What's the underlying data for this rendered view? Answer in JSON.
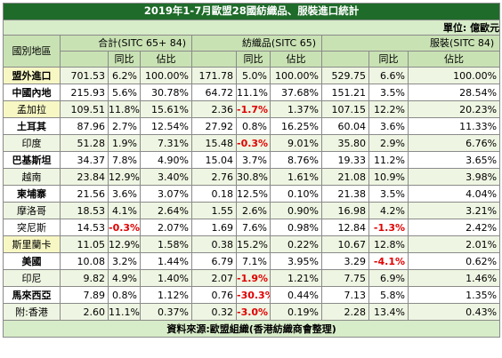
{
  "title": "2019年1-7月歐盟28國紡織品、服裝進口統計",
  "unit": "單位: 億歐元",
  "region_header": "國別地區",
  "groups": {
    "total": "合計(SITC 65+ 84)",
    "textile": "紡織品(SITC 65)",
    "apparel": "服裝(SITC 84)"
  },
  "subheaders": {
    "yoy": "同比",
    "share": "佔比"
  },
  "rows": [
    {
      "region": "盟外進口",
      "t_val": "701.53",
      "t_yoy": "6.2%",
      "t_share": "100.00%",
      "x_val": "171.78",
      "x_yoy": "5.0%",
      "x_share": "100.00%",
      "a_val": "529.75",
      "a_yoy": "6.6%",
      "a_share": "100.00%"
    },
    {
      "region": "中國內地",
      "t_val": "215.93",
      "t_yoy": "5.6%",
      "t_share": "30.78%",
      "x_val": "64.72",
      "x_yoy": "11.1%",
      "x_share": "37.68%",
      "a_val": "151.21",
      "a_yoy": "3.5%",
      "a_share": "28.54%"
    },
    {
      "region": "孟加拉",
      "t_val": "109.51",
      "t_yoy": "11.8%",
      "t_share": "15.61%",
      "x_val": "2.36",
      "x_yoy": "-1.7%",
      "x_share": "1.37%",
      "a_val": "107.15",
      "a_yoy": "12.2%",
      "a_share": "20.23%"
    },
    {
      "region": "土耳其",
      "t_val": "87.96",
      "t_yoy": "2.7%",
      "t_share": "12.54%",
      "x_val": "27.92",
      "x_yoy": "0.8%",
      "x_share": "16.25%",
      "a_val": "60.04",
      "a_yoy": "3.6%",
      "a_share": "11.33%"
    },
    {
      "region": "印度",
      "t_val": "51.28",
      "t_yoy": "1.9%",
      "t_share": "7.31%",
      "x_val": "15.48",
      "x_yoy": "-0.3%",
      "x_share": "9.01%",
      "a_val": "35.80",
      "a_yoy": "2.9%",
      "a_share": "6.76%"
    },
    {
      "region": "巴基斯坦",
      "t_val": "34.37",
      "t_yoy": "7.8%",
      "t_share": "4.90%",
      "x_val": "15.04",
      "x_yoy": "3.7%",
      "x_share": "8.76%",
      "a_val": "19.33",
      "a_yoy": "11.2%",
      "a_share": "3.65%"
    },
    {
      "region": "越南",
      "t_val": "23.84",
      "t_yoy": "12.9%",
      "t_share": "3.40%",
      "x_val": "2.76",
      "x_yoy": "30.8%",
      "x_share": "1.61%",
      "a_val": "21.08",
      "a_yoy": "10.9%",
      "a_share": "3.98%"
    },
    {
      "region": "柬埔寨",
      "t_val": "21.56",
      "t_yoy": "3.6%",
      "t_share": "3.07%",
      "x_val": "0.18",
      "x_yoy": "12.5%",
      "x_share": "0.10%",
      "a_val": "21.38",
      "a_yoy": "3.5%",
      "a_share": "4.04%"
    },
    {
      "region": "摩洛哥",
      "t_val": "18.53",
      "t_yoy": "4.1%",
      "t_share": "2.64%",
      "x_val": "1.55",
      "x_yoy": "2.6%",
      "x_share": "0.90%",
      "a_val": "16.98",
      "a_yoy": "4.2%",
      "a_share": "3.21%"
    },
    {
      "region": "突尼斯",
      "t_val": "14.53",
      "t_yoy": "-0.3%",
      "t_share": "2.07%",
      "x_val": "1.69",
      "x_yoy": "7.6%",
      "x_share": "0.98%",
      "a_val": "12.84",
      "a_yoy": "-1.3%",
      "a_share": "2.42%"
    },
    {
      "region": "斯里蘭卡",
      "t_val": "11.05",
      "t_yoy": "12.9%",
      "t_share": "1.58%",
      "x_val": "0.38",
      "x_yoy": "15.2%",
      "x_share": "0.22%",
      "a_val": "10.67",
      "a_yoy": "12.8%",
      "a_share": "2.01%"
    },
    {
      "region": "美國",
      "t_val": "10.08",
      "t_yoy": "3.2%",
      "t_share": "1.44%",
      "x_val": "6.79",
      "x_yoy": "7.1%",
      "x_share": "3.95%",
      "a_val": "3.29",
      "a_yoy": "-4.1%",
      "a_share": "0.62%"
    },
    {
      "region": "印尼",
      "t_val": "9.82",
      "t_yoy": "4.9%",
      "t_share": "1.40%",
      "x_val": "2.07",
      "x_yoy": "-1.9%",
      "x_share": "1.21%",
      "a_val": "7.75",
      "a_yoy": "6.9%",
      "a_share": "1.46%"
    },
    {
      "region": "馬來西亞",
      "t_val": "7.89",
      "t_yoy": "0.8%",
      "t_share": "1.12%",
      "x_val": "0.76",
      "x_yoy": "-30.3%",
      "x_share": "0.44%",
      "a_val": "7.13",
      "a_yoy": "5.8%",
      "a_share": "1.35%"
    },
    {
      "region": "附:香港",
      "t_val": "2.60",
      "t_yoy": "11.1%",
      "t_share": "0.37%",
      "x_val": "0.32",
      "x_yoy": "-3.0%",
      "x_share": "0.19%",
      "a_val": "2.28",
      "a_yoy": "13.4%",
      "a_share": "0.43%"
    }
  ],
  "source": "資料來源:歐盟組織(香港紡織商會整理)",
  "colors": {
    "title_bg": "#1f6b2a",
    "header_bg": "#c9e2b4",
    "alt_row_bg": "#eef5e2",
    "highlight_region_bg": "#f7f7c4",
    "negative_text": "#e00000"
  }
}
